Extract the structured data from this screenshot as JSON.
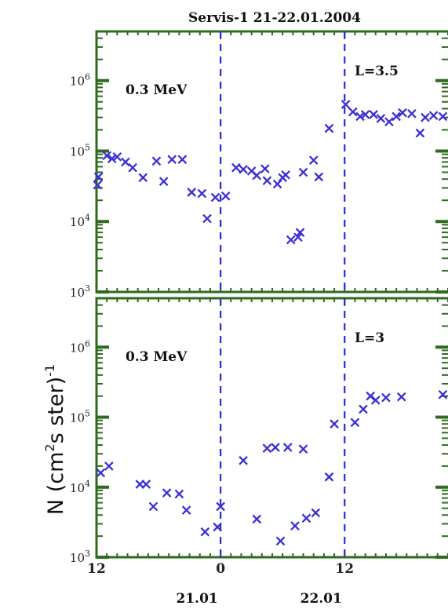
{
  "chart_data": {
    "type": "scatter",
    "title": "Servis-1  21-22.01.2004",
    "ylabel_parts": {
      "base": "N (cm",
      "sup1": "2",
      "mid": "s ster)",
      "sup2": "-1"
    },
    "x_ticks": [
      "12",
      "0",
      "12"
    ],
    "date_labels": [
      "21.01",
      "22.01"
    ],
    "x_tick_values": [
      12,
      24,
      36
    ],
    "xlim": [
      12,
      46
    ],
    "ylim": [
      1000,
      5000000
    ],
    "log_y": true,
    "y_ticks": [
      {
        "base": "10",
        "exp": "3",
        "value": 1000
      },
      {
        "base": "10",
        "exp": "4",
        "value": 10000
      },
      {
        "base": "10",
        "exp": "5",
        "value": 100000
      },
      {
        "base": "10",
        "exp": "6",
        "value": 1000000
      }
    ],
    "reference_lines": [
      24,
      36
    ],
    "marker_color": "#3a2fd6",
    "line_color": "#2a2ad8",
    "frame_color": "#2e6b1e",
    "panels": [
      {
        "annotation_left": "0.3 MeV",
        "annotation_right": "L=3.5",
        "points": [
          [
            12.1,
            33000
          ],
          [
            12.2,
            43000
          ],
          [
            13.0,
            86000
          ],
          [
            13.5,
            78000
          ],
          [
            14.0,
            83000
          ],
          [
            14.8,
            70000
          ],
          [
            15.5,
            58000
          ],
          [
            16.5,
            42000
          ],
          [
            17.8,
            72000
          ],
          [
            18.5,
            37000
          ],
          [
            19.3,
            76000
          ],
          [
            20.3,
            76000
          ],
          [
            21.2,
            26000
          ],
          [
            22.2,
            25000
          ],
          [
            22.7,
            11000
          ],
          [
            23.5,
            22000
          ],
          [
            24.5,
            23000
          ],
          [
            25.5,
            58000
          ],
          [
            26.2,
            55000
          ],
          [
            27.0,
            52000
          ],
          [
            27.5,
            45000
          ],
          [
            28.3,
            56000
          ],
          [
            28.5,
            38000
          ],
          [
            29.5,
            34000
          ],
          [
            30.0,
            42000
          ],
          [
            30.3,
            46000
          ],
          [
            30.8,
            5500
          ],
          [
            31.5,
            6000
          ],
          [
            31.7,
            7000
          ],
          [
            32.0,
            50000
          ],
          [
            33.0,
            74000
          ],
          [
            33.5,
            43000
          ],
          [
            34.5,
            210000
          ],
          [
            36.1,
            460000
          ],
          [
            36.8,
            360000
          ],
          [
            37.5,
            310000
          ],
          [
            38.0,
            330000
          ],
          [
            38.8,
            330000
          ],
          [
            39.5,
            290000
          ],
          [
            40.3,
            260000
          ],
          [
            41.0,
            310000
          ],
          [
            41.6,
            350000
          ],
          [
            42.5,
            340000
          ],
          [
            43.3,
            180000
          ],
          [
            43.8,
            300000
          ],
          [
            44.6,
            320000
          ],
          [
            45.5,
            310000
          ]
        ]
      },
      {
        "annotation_left": "0.3 MeV",
        "annotation_right": "L=3",
        "points": [
          [
            12.4,
            16000
          ],
          [
            13.2,
            20000
          ],
          [
            16.2,
            11000
          ],
          [
            16.8,
            11000
          ],
          [
            17.5,
            5300
          ],
          [
            18.8,
            8300
          ],
          [
            20.0,
            8000
          ],
          [
            20.7,
            4700
          ],
          [
            22.5,
            2300
          ],
          [
            23.7,
            2700
          ],
          [
            24.0,
            5300
          ],
          [
            26.2,
            24000
          ],
          [
            27.5,
            3500
          ],
          [
            28.5,
            36000
          ],
          [
            29.3,
            37000
          ],
          [
            29.8,
            1700
          ],
          [
            30.5,
            37000
          ],
          [
            31.2,
            2800
          ],
          [
            32.0,
            35000
          ],
          [
            32.3,
            3600
          ],
          [
            33.2,
            4300
          ],
          [
            34.5,
            14000
          ],
          [
            35.0,
            80000
          ],
          [
            37.0,
            84000
          ],
          [
            37.8,
            130000
          ],
          [
            38.5,
            200000
          ],
          [
            39.0,
            175000
          ],
          [
            40.0,
            190000
          ],
          [
            41.5,
            195000
          ],
          [
            45.5,
            210000
          ]
        ]
      }
    ]
  }
}
